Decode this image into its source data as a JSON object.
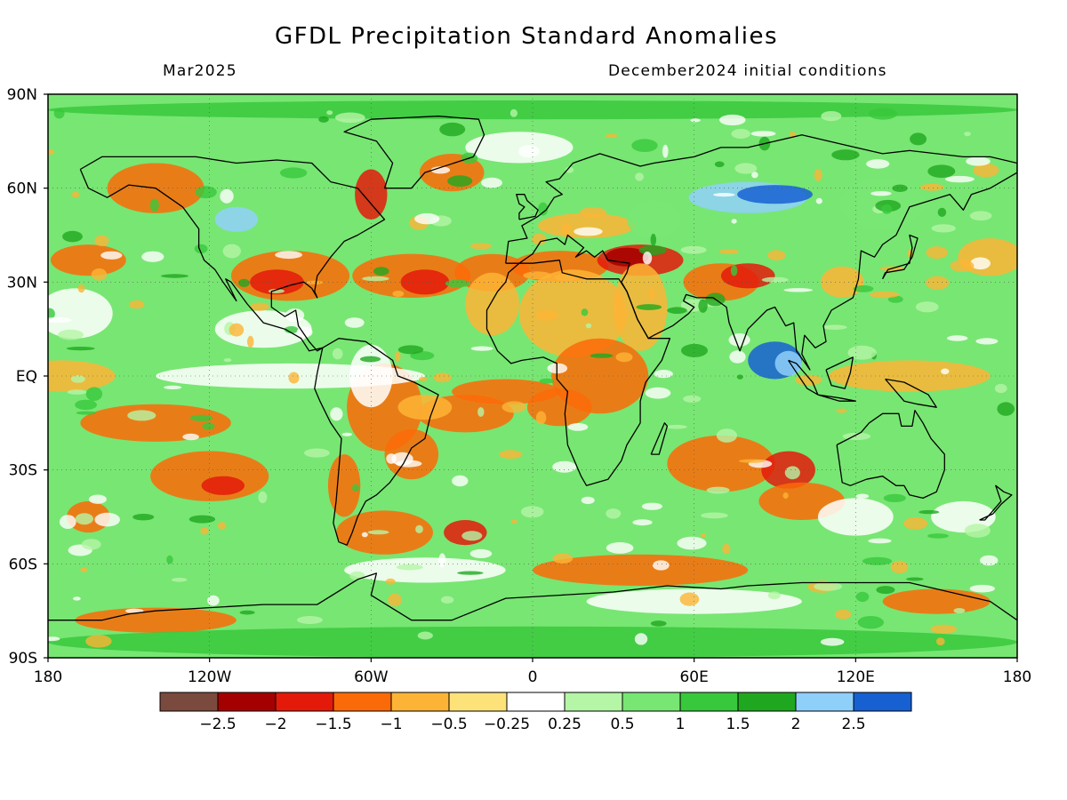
{
  "header": {
    "title": "GFDL Precipitation Standard Anomalies",
    "valid_month": "Mar2025",
    "init_conditions": "December2024 initial conditions"
  },
  "map": {
    "projection": "cylindrical equidistant",
    "lat_ticks": [
      "90N",
      "60N",
      "30N",
      "EQ",
      "30S",
      "60S",
      "90S"
    ],
    "lon_ticks": [
      "180",
      "120W",
      "60W",
      "0",
      "60E",
      "120E",
      "180"
    ],
    "gridlines": "dotted",
    "coastlines": true
  },
  "colorbar": {
    "labels": [
      "-2.5",
      "-2",
      "-1.5",
      "-1",
      "-0.5",
      "-0.25",
      "0.25",
      "0.5",
      "1",
      "1.5",
      "2",
      "2.5"
    ],
    "colors": [
      "#7a4a3e",
      "#a50000",
      "#e31a0a",
      "#fb6a08",
      "#fdb436",
      "#fde27a",
      "#ffffff",
      "#b5f5a6",
      "#78e673",
      "#38c83c",
      "#1fa81f",
      "#8fd0fa",
      "#1760d2"
    ]
  }
}
